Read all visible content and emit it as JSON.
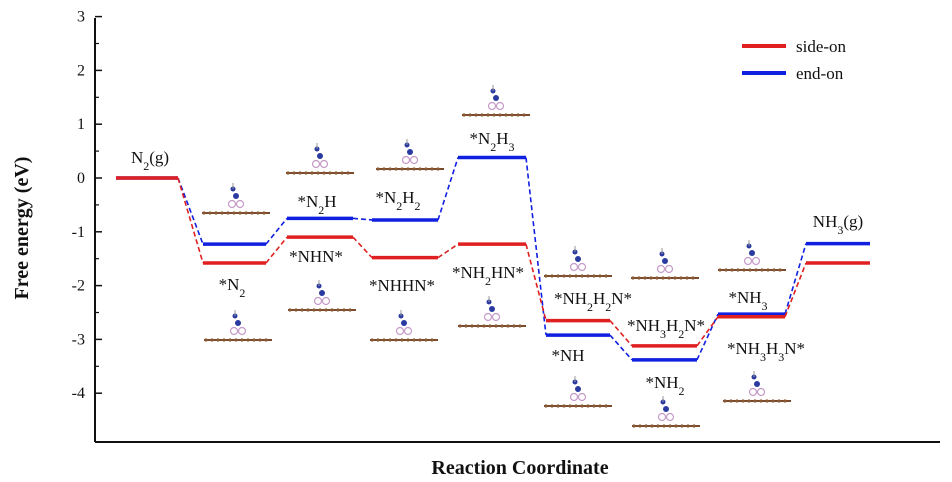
{
  "chart_data": {
    "type": "line",
    "title": "",
    "xlabel": "Reaction Coordinate",
    "ylabel": "Free energy (eV)",
    "ylim": [
      -4.8,
      3
    ],
    "yticks": [
      "3",
      "2",
      "1",
      "0",
      "-1",
      "-2",
      "-3",
      "-4"
    ],
    "grid": false,
    "legend_position": "top-right",
    "colors": {
      "side-on": "#e02020",
      "end-on": "#1020e0"
    },
    "series": [
      {
        "name": "side-on",
        "values": [
          0,
          -1.58,
          -1.1,
          -1.48,
          -1.23,
          -2.65,
          -3.12,
          -2.58,
          -1.58
        ],
        "labels": [
          "N2(g)",
          "*N2",
          "*NHN*",
          "*NHHN*",
          "*NH2HN*",
          "*NH2H2N*",
          "*NH3H2N*",
          "*NH3H3N*",
          "NH3(g)"
        ]
      },
      {
        "name": "end-on",
        "values": [
          0,
          -1.23,
          -0.75,
          -0.78,
          0.38,
          -2.92,
          -3.38,
          -2.53,
          -1.22
        ],
        "labels": [
          "N2(g)",
          "*N2",
          "*N2H",
          "*N2H2",
          "*N2H3",
          "*NH",
          "*NH2",
          "*NH3",
          "NH3(g)"
        ]
      }
    ]
  }
}
